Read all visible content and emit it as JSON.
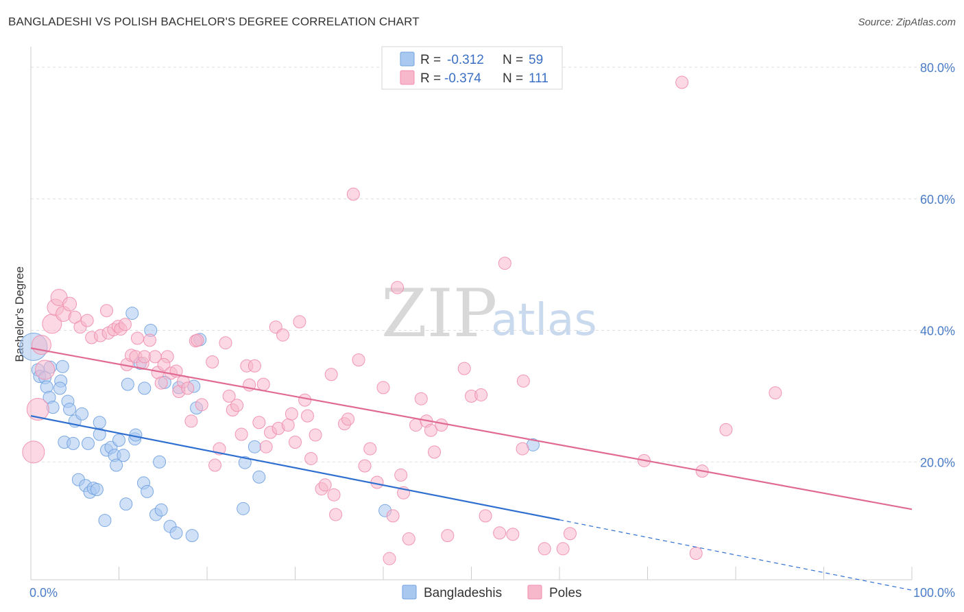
{
  "header": {
    "title": "BANGLADESHI VS POLISH BACHELOR'S DEGREE CORRELATION CHART",
    "source": "Source: ZipAtlas.com"
  },
  "watermark": {
    "zip": "ZIP",
    "atlas": "atlas"
  },
  "legend": {
    "r_label": "R =",
    "n_label": "N =",
    "rows": [
      {
        "r": "-0.312",
        "n": "59",
        "color": "#a9c8f0"
      },
      {
        "r": "-0.374",
        "n": "111",
        "color": "#f7b8cc"
      }
    ]
  },
  "bottom_legend": [
    "Bangladeshis",
    "Poles"
  ],
  "chart_data": {
    "type": "scatter",
    "title": "BANGLADESHI VS POLISH BACHELOR'S DEGREE CORRELATION CHART",
    "xlabel": "",
    "ylabel": "Bachelor's Degree",
    "xlim": [
      0,
      100
    ],
    "ylim": [
      0,
      80
    ],
    "x_tick_labels": [
      "0.0%",
      "100.0%"
    ],
    "y_ticks": [
      20,
      40,
      60,
      80
    ],
    "y_tick_labels": [
      "20.0%",
      "40.0%",
      "60.0%",
      "80.0%"
    ],
    "grid": "horizontal dashed",
    "legend_position": "top-center",
    "series": [
      {
        "name": "Bangladeshis",
        "color": "#6fa0e0",
        "fill": "#a9c8f0",
        "trend": {
          "x0": 0,
          "y0": 27.0,
          "x1": 60,
          "y1": 11.2,
          "dashed_to_x": 100,
          "dashed_to_y": 0.5,
          "color": "#2f6fd0"
        },
        "points": [
          [
            0.3,
            37.5,
            20
          ],
          [
            0.8,
            34.0,
            9
          ],
          [
            1.0,
            33.0,
            9
          ],
          [
            1.6,
            32.8,
            9
          ],
          [
            1.8,
            31.4,
            9
          ],
          [
            2.2,
            34.4,
            9
          ],
          [
            2.1,
            29.8,
            9
          ],
          [
            2.5,
            28.3,
            9
          ],
          [
            3.4,
            32.3,
            9
          ],
          [
            3.3,
            31.2,
            9
          ],
          [
            3.6,
            34.5,
            9
          ],
          [
            4.2,
            29.2,
            9
          ],
          [
            4.4,
            28.0,
            9
          ],
          [
            5.0,
            26.2,
            9
          ],
          [
            5.8,
            27.3,
            9
          ],
          [
            3.8,
            23.0,
            9
          ],
          [
            4.8,
            22.8,
            9
          ],
          [
            5.4,
            17.3,
            9
          ],
          [
            6.2,
            16.4,
            9
          ],
          [
            6.7,
            15.4,
            9
          ],
          [
            7.1,
            16.0,
            9
          ],
          [
            7.5,
            15.8,
            9
          ],
          [
            6.5,
            22.8,
            9
          ],
          [
            7.8,
            26.0,
            9
          ],
          [
            7.8,
            24.2,
            9
          ],
          [
            8.6,
            21.8,
            9
          ],
          [
            8.4,
            11.1,
            9
          ],
          [
            9.1,
            22.2,
            9
          ],
          [
            9.5,
            21.0,
            9
          ],
          [
            9.7,
            19.5,
            9
          ],
          [
            10.0,
            23.3,
            9
          ],
          [
            10.5,
            21.0,
            9
          ],
          [
            10.8,
            13.6,
            9
          ],
          [
            11.0,
            31.8,
            9
          ],
          [
            11.5,
            42.6,
            9
          ],
          [
            11.8,
            23.5,
            9
          ],
          [
            11.9,
            24.1,
            9
          ],
          [
            12.4,
            35.0,
            9
          ],
          [
            12.8,
            16.8,
            9
          ],
          [
            12.9,
            31.2,
            9
          ],
          [
            13.2,
            15.5,
            9
          ],
          [
            13.6,
            40.0,
            9
          ],
          [
            14.2,
            12.0,
            9
          ],
          [
            14.6,
            20.0,
            9
          ],
          [
            14.8,
            12.7,
            9
          ],
          [
            15.2,
            32.1,
            9
          ],
          [
            15.8,
            10.2,
            9
          ],
          [
            16.5,
            9.2,
            9
          ],
          [
            16.8,
            31.3,
            9
          ],
          [
            18.3,
            8.8,
            9
          ],
          [
            18.5,
            31.5,
            9
          ],
          [
            18.8,
            28.2,
            9
          ],
          [
            19.2,
            38.6,
            9
          ],
          [
            24.3,
            19.9,
            9
          ],
          [
            24.1,
            12.9,
            9
          ],
          [
            25.4,
            22.3,
            9
          ],
          [
            25.9,
            17.7,
            9
          ],
          [
            40.2,
            12.6,
            9
          ],
          [
            57.0,
            22.6,
            9
          ]
        ]
      },
      {
        "name": "Poles",
        "color": "#f08cac",
        "fill": "#f7b8cc",
        "trend": {
          "x0": 0,
          "y0": 37.3,
          "x1": 100,
          "y1": 12.8,
          "color": "#e06a92"
        },
        "points": [
          [
            0.3,
            21.5,
            16
          ],
          [
            0.8,
            28.0,
            16
          ],
          [
            1.2,
            37.8,
            14
          ],
          [
            1.6,
            34.0,
            14
          ],
          [
            2.4,
            41.0,
            14
          ],
          [
            2.8,
            43.5,
            12
          ],
          [
            3.2,
            45.0,
            12
          ],
          [
            3.7,
            42.5,
            11
          ],
          [
            4.4,
            44.0,
            10
          ],
          [
            5.0,
            42.0,
            9
          ],
          [
            5.6,
            40.5,
            9
          ],
          [
            6.4,
            41.5,
            9
          ],
          [
            6.9,
            38.9,
            9
          ],
          [
            7.9,
            39.2,
            9
          ],
          [
            8.6,
            43.0,
            9
          ],
          [
            8.8,
            39.6,
            9
          ],
          [
            9.4,
            40.1,
            9
          ],
          [
            9.9,
            40.6,
            9
          ],
          [
            10.2,
            40.2,
            9
          ],
          [
            10.7,
            40.9,
            9
          ],
          [
            10.9,
            34.8,
            9
          ],
          [
            11.4,
            36.2,
            9
          ],
          [
            11.9,
            36.0,
            9
          ],
          [
            12.1,
            38.8,
            9
          ],
          [
            12.7,
            35.0,
            9
          ],
          [
            12.9,
            36.0,
            9
          ],
          [
            13.5,
            38.5,
            9
          ],
          [
            14.1,
            36.0,
            9
          ],
          [
            14.4,
            33.6,
            9
          ],
          [
            14.8,
            32.0,
            9
          ],
          [
            15.5,
            36.0,
            9
          ],
          [
            15.1,
            34.8,
            9
          ],
          [
            15.9,
            33.5,
            9
          ],
          [
            16.5,
            33.8,
            9
          ],
          [
            16.8,
            30.7,
            9
          ],
          [
            17.3,
            32.2,
            9
          ],
          [
            17.8,
            31.2,
            9
          ],
          [
            18.2,
            26.2,
            9
          ],
          [
            18.7,
            38.4,
            9
          ],
          [
            19.4,
            28.7,
            9
          ],
          [
            20.6,
            35.2,
            9
          ],
          [
            20.9,
            19.5,
            9
          ],
          [
            21.4,
            22.0,
            9
          ],
          [
            22.1,
            38.1,
            9
          ],
          [
            22.5,
            30.0,
            9
          ],
          [
            22.9,
            27.9,
            9
          ],
          [
            23.4,
            28.6,
            9
          ],
          [
            23.9,
            24.2,
            9
          ],
          [
            24.5,
            34.6,
            9
          ],
          [
            24.8,
            31.7,
            9
          ],
          [
            25.4,
            34.6,
            9
          ],
          [
            25.9,
            26.0,
            9
          ],
          [
            26.4,
            31.8,
            9
          ],
          [
            26.7,
            22.3,
            9
          ],
          [
            27.2,
            24.5,
            9
          ],
          [
            27.8,
            40.5,
            9
          ],
          [
            28.1,
            25.1,
            9
          ],
          [
            28.6,
            39.3,
            9
          ],
          [
            29.2,
            25.6,
            9
          ],
          [
            29.6,
            27.3,
            9
          ],
          [
            30.0,
            23.0,
            9
          ],
          [
            30.5,
            41.3,
            9
          ],
          [
            31.1,
            29.4,
            9
          ],
          [
            31.4,
            27.0,
            9
          ],
          [
            31.8,
            20.5,
            9
          ],
          [
            32.3,
            24.1,
            9
          ],
          [
            33.0,
            15.9,
            9
          ],
          [
            33.4,
            16.5,
            9
          ],
          [
            34.1,
            33.3,
            9
          ],
          [
            34.4,
            15.0,
            9
          ],
          [
            34.6,
            12.0,
            9
          ],
          [
            35.6,
            25.8,
            9
          ],
          [
            36.0,
            26.5,
            9
          ],
          [
            36.6,
            60.7,
            9
          ],
          [
            37.2,
            35.5,
            9
          ],
          [
            37.9,
            19.4,
            9
          ],
          [
            38.5,
            22.0,
            9
          ],
          [
            39.3,
            16.9,
            9
          ],
          [
            40.0,
            31.3,
            9
          ],
          [
            40.7,
            5.3,
            9
          ],
          [
            41.1,
            11.8,
            9
          ],
          [
            41.6,
            46.5,
            9
          ],
          [
            42.0,
            18.0,
            9
          ],
          [
            42.3,
            15.3,
            9
          ],
          [
            42.9,
            8.3,
            9
          ],
          [
            43.7,
            25.6,
            9
          ],
          [
            44.3,
            29.6,
            9
          ],
          [
            44.9,
            26.2,
            9
          ],
          [
            45.4,
            24.8,
            9
          ],
          [
            45.8,
            21.5,
            9
          ],
          [
            46.6,
            25.6,
            9
          ],
          [
            47.3,
            8.8,
            9
          ],
          [
            49.2,
            34.2,
            9
          ],
          [
            50.0,
            30.0,
            9
          ],
          [
            51.1,
            30.2,
            9
          ],
          [
            51.6,
            11.8,
            9
          ],
          [
            53.2,
            9.2,
            9
          ],
          [
            53.8,
            50.2,
            9
          ],
          [
            54.7,
            9.0,
            9
          ],
          [
            55.8,
            22.0,
            9
          ],
          [
            55.9,
            32.3,
            9
          ],
          [
            58.3,
            6.8,
            9
          ],
          [
            60.4,
            6.8,
            9
          ],
          [
            61.2,
            9.1,
            9
          ],
          [
            69.6,
            20.2,
            9
          ],
          [
            73.9,
            77.7,
            9
          ],
          [
            75.5,
            6.1,
            9
          ],
          [
            76.2,
            18.6,
            9
          ],
          [
            78.9,
            24.9,
            9
          ],
          [
            84.5,
            30.5,
            9
          ],
          [
            18.9,
            38.5,
            9
          ]
        ]
      }
    ]
  }
}
